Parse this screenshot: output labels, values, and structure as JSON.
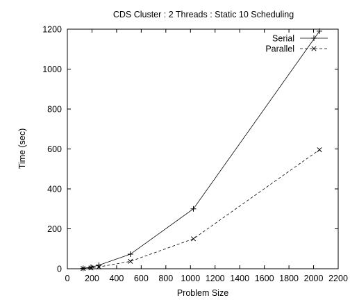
{
  "chart_data": {
    "type": "line",
    "title": "CDS Cluster : 2 Threads : Static 10 Scheduling",
    "xlabel": "Problem Size",
    "ylabel": "Time (sec)",
    "xlim": [
      0,
      2200
    ],
    "ylim": [
      0,
      1200
    ],
    "xticks": [
      0,
      200,
      400,
      600,
      800,
      1000,
      1200,
      1400,
      1600,
      1800,
      2000,
      2200
    ],
    "yticks": [
      0,
      200,
      400,
      600,
      800,
      1000,
      1200
    ],
    "grid": false,
    "legend_position": "top-right",
    "series": [
      {
        "name": "Serial",
        "style": "solid",
        "marker": "plus",
        "color": "#000000",
        "x": [
          128,
          192,
          256,
          512,
          1024,
          2048
        ],
        "y": [
          2,
          8,
          18,
          73,
          300,
          1190
        ]
      },
      {
        "name": "Parallel",
        "style": "dashed",
        "marker": "cross",
        "color": "#000000",
        "x": [
          128,
          192,
          256,
          512,
          1024,
          2048
        ],
        "y": [
          1,
          4,
          9,
          37,
          150,
          596
        ]
      }
    ]
  }
}
